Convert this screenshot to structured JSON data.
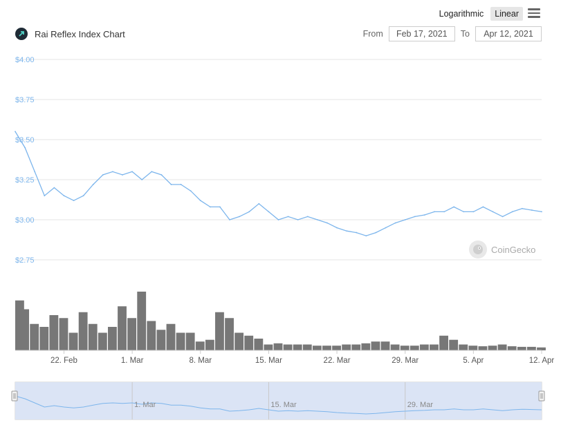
{
  "header": {
    "title": "Rai Reflex Index Chart",
    "logo_icon": "rai-reflex-logo-icon",
    "scale_options": [
      "Logarithmic",
      "Linear"
    ],
    "scale_selected": "Linear",
    "menu_icon": "hamburger-menu-icon",
    "from_label": "From",
    "from_date": "Feb 17, 2021",
    "to_label": "To",
    "to_date": "Apr 12, 2021"
  },
  "watermark": {
    "text": "CoinGecko",
    "icon": "coingecko-gecko-icon"
  },
  "colors": {
    "price_line": "#7cb5ec",
    "volume_bar": "#777777",
    "grid": "#e6e6e6",
    "y_label": "#7cb5ec",
    "navigator_fill": "#dbe4f5"
  },
  "chart_data": [
    {
      "type": "line",
      "title": "",
      "series": [
        {
          "values": [
            {
              "x": "2021-02-17",
              "y": 3.55
            },
            {
              "x": "2021-02-18",
              "y": 3.45
            },
            {
              "x": "2021-02-19",
              "y": 3.3
            },
            {
              "x": "2021-02-20",
              "y": 3.15
            },
            {
              "x": "2021-02-21",
              "y": 3.2
            },
            {
              "x": "2021-02-22",
              "y": 3.15
            },
            {
              "x": "2021-02-23",
              "y": 3.12
            },
            {
              "x": "2021-02-24",
              "y": 3.15
            },
            {
              "x": "2021-02-25",
              "y": 3.22
            },
            {
              "x": "2021-02-26",
              "y": 3.28
            },
            {
              "x": "2021-02-27",
              "y": 3.3
            },
            {
              "x": "2021-02-28",
              "y": 3.28
            },
            {
              "x": "2021-03-01",
              "y": 3.3
            },
            {
              "x": "2021-03-02",
              "y": 3.25
            },
            {
              "x": "2021-03-03",
              "y": 3.3
            },
            {
              "x": "2021-03-04",
              "y": 3.28
            },
            {
              "x": "2021-03-05",
              "y": 3.22
            },
            {
              "x": "2021-03-06",
              "y": 3.22
            },
            {
              "x": "2021-03-07",
              "y": 3.18
            },
            {
              "x": "2021-03-08",
              "y": 3.12
            },
            {
              "x": "2021-03-09",
              "y": 3.08
            },
            {
              "x": "2021-03-10",
              "y": 3.08
            },
            {
              "x": "2021-03-11",
              "y": 3.0
            },
            {
              "x": "2021-03-12",
              "y": 3.02
            },
            {
              "x": "2021-03-13",
              "y": 3.05
            },
            {
              "x": "2021-03-14",
              "y": 3.1
            },
            {
              "x": "2021-03-15",
              "y": 3.05
            },
            {
              "x": "2021-03-16",
              "y": 3.0
            },
            {
              "x": "2021-03-17",
              "y": 3.02
            },
            {
              "x": "2021-03-18",
              "y": 3.0
            },
            {
              "x": "2021-03-19",
              "y": 3.02
            },
            {
              "x": "2021-03-20",
              "y": 3.0
            },
            {
              "x": "2021-03-21",
              "y": 2.98
            },
            {
              "x": "2021-03-22",
              "y": 2.95
            },
            {
              "x": "2021-03-23",
              "y": 2.93
            },
            {
              "x": "2021-03-24",
              "y": 2.92
            },
            {
              "x": "2021-03-25",
              "y": 2.9
            },
            {
              "x": "2021-03-26",
              "y": 2.92
            },
            {
              "x": "2021-03-27",
              "y": 2.95
            },
            {
              "x": "2021-03-28",
              "y": 2.98
            },
            {
              "x": "2021-03-29",
              "y": 3.0
            },
            {
              "x": "2021-03-30",
              "y": 3.02
            },
            {
              "x": "2021-03-31",
              "y": 3.03
            },
            {
              "x": "2021-04-01",
              "y": 3.05
            },
            {
              "x": "2021-04-02",
              "y": 3.05
            },
            {
              "x": "2021-04-03",
              "y": 3.08
            },
            {
              "x": "2021-04-04",
              "y": 3.05
            },
            {
              "x": "2021-04-05",
              "y": 3.05
            },
            {
              "x": "2021-04-06",
              "y": 3.08
            },
            {
              "x": "2021-04-07",
              "y": 3.05
            },
            {
              "x": "2021-04-08",
              "y": 3.02
            },
            {
              "x": "2021-04-09",
              "y": 3.05
            },
            {
              "x": "2021-04-10",
              "y": 3.07
            },
            {
              "x": "2021-04-11",
              "y": 3.06
            },
            {
              "x": "2021-04-12",
              "y": 3.05
            }
          ]
        }
      ],
      "ylim": [
        2.75,
        4.0
      ],
      "y_ticks": [
        {
          "value": 4.0,
          "label": "$4.00"
        },
        {
          "value": 3.75,
          "label": "$3.75"
        },
        {
          "value": 3.5,
          "label": "$3.50"
        },
        {
          "value": 3.25,
          "label": "$3.25"
        },
        {
          "value": 3.0,
          "label": "$3.00"
        },
        {
          "value": 2.75,
          "label": "$2.75"
        }
      ],
      "x_ticks": [
        {
          "value": "2021-02-22",
          "label": "22. Feb"
        },
        {
          "value": "2021-03-01",
          "label": "1. Mar"
        },
        {
          "value": "2021-03-08",
          "label": "8. Mar"
        },
        {
          "value": "2021-03-15",
          "label": "15. Mar"
        },
        {
          "value": "2021-03-22",
          "label": "22. Mar"
        },
        {
          "value": "2021-03-29",
          "label": "29. Mar"
        },
        {
          "value": "2021-04-05",
          "label": "5. Apr"
        },
        {
          "value": "2021-04-12",
          "label": "12. Apr"
        }
      ],
      "xlim": [
        "2021-02-17",
        "2021-04-12"
      ],
      "grid": true,
      "legend": "none"
    },
    {
      "type": "bar",
      "title": "",
      "series": [
        {
          "values": [
            {
              "x": "2021-02-17",
              "y": 0.85
            },
            {
              "x": "2021-02-18",
              "y": 0.7
            },
            {
              "x": "2021-02-19",
              "y": 0.45
            },
            {
              "x": "2021-02-20",
              "y": 0.4
            },
            {
              "x": "2021-02-21",
              "y": 0.6
            },
            {
              "x": "2021-02-22",
              "y": 0.55
            },
            {
              "x": "2021-02-23",
              "y": 0.3
            },
            {
              "x": "2021-02-24",
              "y": 0.65
            },
            {
              "x": "2021-02-25",
              "y": 0.45
            },
            {
              "x": "2021-02-26",
              "y": 0.3
            },
            {
              "x": "2021-02-27",
              "y": 0.4
            },
            {
              "x": "2021-02-28",
              "y": 0.75
            },
            {
              "x": "2021-03-01",
              "y": 0.55
            },
            {
              "x": "2021-03-02",
              "y": 1.0
            },
            {
              "x": "2021-03-03",
              "y": 0.5
            },
            {
              "x": "2021-03-04",
              "y": 0.35
            },
            {
              "x": "2021-03-05",
              "y": 0.45
            },
            {
              "x": "2021-03-06",
              "y": 0.3
            },
            {
              "x": "2021-03-07",
              "y": 0.3
            },
            {
              "x": "2021-03-08",
              "y": 0.15
            },
            {
              "x": "2021-03-09",
              "y": 0.18
            },
            {
              "x": "2021-03-10",
              "y": 0.65
            },
            {
              "x": "2021-03-11",
              "y": 0.55
            },
            {
              "x": "2021-03-12",
              "y": 0.3
            },
            {
              "x": "2021-03-13",
              "y": 0.25
            },
            {
              "x": "2021-03-14",
              "y": 0.2
            },
            {
              "x": "2021-03-15",
              "y": 0.1
            },
            {
              "x": "2021-03-16",
              "y": 0.12
            },
            {
              "x": "2021-03-17",
              "y": 0.1
            },
            {
              "x": "2021-03-18",
              "y": 0.1
            },
            {
              "x": "2021-03-19",
              "y": 0.1
            },
            {
              "x": "2021-03-20",
              "y": 0.08
            },
            {
              "x": "2021-03-21",
              "y": 0.08
            },
            {
              "x": "2021-03-22",
              "y": 0.08
            },
            {
              "x": "2021-03-23",
              "y": 0.1
            },
            {
              "x": "2021-03-24",
              "y": 0.1
            },
            {
              "x": "2021-03-25",
              "y": 0.12
            },
            {
              "x": "2021-03-26",
              "y": 0.15
            },
            {
              "x": "2021-03-27",
              "y": 0.15
            },
            {
              "x": "2021-03-28",
              "y": 0.1
            },
            {
              "x": "2021-03-29",
              "y": 0.08
            },
            {
              "x": "2021-03-30",
              "y": 0.08
            },
            {
              "x": "2021-03-31",
              "y": 0.1
            },
            {
              "x": "2021-04-01",
              "y": 0.1
            },
            {
              "x": "2021-04-02",
              "y": 0.25
            },
            {
              "x": "2021-04-03",
              "y": 0.18
            },
            {
              "x": "2021-04-04",
              "y": 0.1
            },
            {
              "x": "2021-04-05",
              "y": 0.08
            },
            {
              "x": "2021-04-06",
              "y": 0.07
            },
            {
              "x": "2021-04-07",
              "y": 0.08
            },
            {
              "x": "2021-04-08",
              "y": 0.1
            },
            {
              "x": "2021-04-09",
              "y": 0.07
            },
            {
              "x": "2021-04-10",
              "y": 0.06
            },
            {
              "x": "2021-04-11",
              "y": 0.06
            },
            {
              "x": "2021-04-12",
              "y": 0.05
            }
          ]
        }
      ],
      "xlim": [
        "2021-02-17",
        "2021-04-12"
      ],
      "ylim": [
        0,
        1.0
      ],
      "grid": false,
      "legend": "none"
    }
  ],
  "navigator": {
    "x_ticks": [
      {
        "value": "2021-03-01",
        "label": "1. Mar"
      },
      {
        "value": "2021-03-15",
        "label": "15. Mar"
      },
      {
        "value": "2021-03-29",
        "label": "29. Mar"
      }
    ],
    "selected_from": "2021-02-17",
    "selected_to": "2021-04-12"
  }
}
